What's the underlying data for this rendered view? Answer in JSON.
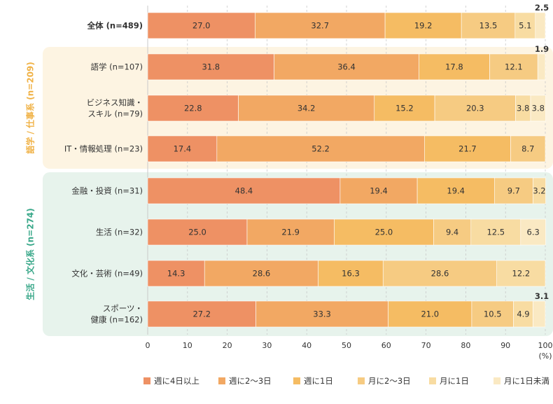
{
  "chart_data": {
    "type": "bar",
    "orientation": "horizontal",
    "stacked": true,
    "xlim": [
      0,
      100
    ],
    "x_ticks": [
      "0",
      "10",
      "20",
      "30",
      "40",
      "50",
      "60",
      "70",
      "80",
      "90",
      "100"
    ],
    "x_unit": "(%)",
    "grid": true,
    "legend_position": "bottom",
    "groups": [
      {
        "label": "語学 / 仕事系 (n=209)",
        "color": "#f0b246",
        "bg": "#fdf4e2"
      },
      {
        "label": "生活 / 文化系 (n=274)",
        "color": "#3aa88a",
        "bg": "#e7f3ec"
      }
    ],
    "series": [
      {
        "name": "週に4日以上",
        "color": "#ee9164"
      },
      {
        "name": "週に2～3日",
        "color": "#f2a863"
      },
      {
        "name": "週に1日",
        "color": "#f5bc63"
      },
      {
        "name": "月に2～3日",
        "color": "#f6cb82"
      },
      {
        "name": "月に1日",
        "color": "#f8dca2"
      },
      {
        "name": "月に1日未満",
        "color": "#fae9c3"
      }
    ],
    "categories": [
      {
        "label": [
          "全体 (n=489)"
        ],
        "bold": true,
        "group": null,
        "values": [
          27.0,
          32.7,
          19.2,
          13.5,
          5.1,
          2.5
        ],
        "labels": [
          "27.0",
          "32.7",
          "19.2",
          "13.5",
          "5.1",
          "2.5"
        ]
      },
      {
        "label": [
          "語学 (n=107)"
        ],
        "bold": false,
        "group": 0,
        "values": [
          31.8,
          36.4,
          17.8,
          12.1,
          0,
          1.9
        ],
        "labels": [
          "31.8",
          "36.4",
          "17.8",
          "12.1",
          "",
          "1.9"
        ]
      },
      {
        "label": [
          "ビジネス知識・",
          "スキル (n=79)"
        ],
        "bold": false,
        "group": 0,
        "values": [
          22.8,
          34.2,
          15.2,
          20.3,
          3.8,
          3.8
        ],
        "labels": [
          "22.8",
          "34.2",
          "15.2",
          "20.3",
          "3.8",
          "3.8"
        ]
      },
      {
        "label": [
          "IT・情報処理 (n=23)"
        ],
        "bold": false,
        "group": 0,
        "values": [
          17.4,
          52.2,
          21.7,
          8.7,
          0,
          0
        ],
        "labels": [
          "17.4",
          "52.2",
          "21.7",
          "8.7",
          "",
          ""
        ]
      },
      {
        "label": [
          "金融・投資 (n=31)"
        ],
        "bold": false,
        "group": 1,
        "values": [
          48.4,
          19.4,
          19.4,
          9.7,
          3.2,
          0
        ],
        "labels": [
          "48.4",
          "19.4",
          "19.4",
          "9.7",
          "3.2",
          ""
        ]
      },
      {
        "label": [
          "生活 (n=32)"
        ],
        "bold": false,
        "group": 1,
        "values": [
          25.0,
          21.9,
          25.0,
          9.4,
          12.5,
          6.3
        ],
        "labels": [
          "25.0",
          "21.9",
          "25.0",
          "9.4",
          "12.5",
          "6.3"
        ]
      },
      {
        "label": [
          "文化・芸術 (n=49)"
        ],
        "bold": false,
        "group": 1,
        "values": [
          14.3,
          28.6,
          16.3,
          28.6,
          12.2,
          0
        ],
        "labels": [
          "14.3",
          "28.6",
          "16.3",
          "28.6",
          "12.2",
          ""
        ]
      },
      {
        "label": [
          "スポーツ・",
          "健康 (n=162)"
        ],
        "bold": false,
        "group": 1,
        "values": [
          27.2,
          33.3,
          21.0,
          10.5,
          4.9,
          3.1
        ],
        "labels": [
          "27.2",
          "33.3",
          "21.0",
          "10.5",
          "4.9",
          "3.1"
        ]
      }
    ]
  }
}
